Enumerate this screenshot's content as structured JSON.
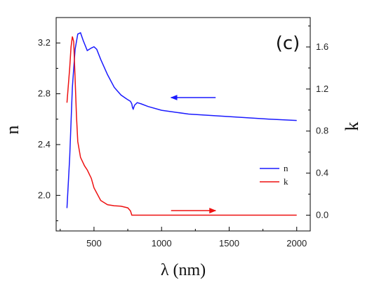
{
  "chart_data": {
    "type": "line",
    "panel_label": "(c)",
    "xlabel": "λ (nm)",
    "ylabel_left": "n",
    "ylabel_right": "k",
    "xlim": [
      220,
      2100
    ],
    "ylim_left": [
      1.72,
      3.4
    ],
    "ylim_right": [
      -0.15,
      1.88
    ],
    "x_ticks": [
      500,
      1000,
      1500,
      2000
    ],
    "x_tick_labels": [
      "500",
      "1000",
      "1500",
      "2000"
    ],
    "y_ticks_left": [
      2.0,
      2.4,
      2.8,
      3.2
    ],
    "y_tick_labels_left": [
      "2.0",
      "2.4",
      "2.8",
      "3.2"
    ],
    "y_ticks_right": [
      0.0,
      0.4,
      0.8,
      1.2,
      1.6
    ],
    "y_tick_labels_right": [
      "0.0",
      "0.4",
      "0.8",
      "1.2",
      "1.6"
    ],
    "legend_position": "center-right",
    "series": [
      {
        "name": "n",
        "axis": "left",
        "color": "#1a1aff",
        "x": [
          300,
          320,
          340,
          360,
          380,
          400,
          420,
          450,
          480,
          500,
          520,
          550,
          600,
          650,
          700,
          740,
          770,
          780,
          785,
          790,
          800,
          820,
          850,
          900,
          1000,
          1200,
          1500,
          1800,
          2000
        ],
        "y": [
          1.9,
          2.3,
          2.85,
          3.15,
          3.27,
          3.28,
          3.22,
          3.14,
          3.16,
          3.17,
          3.15,
          3.07,
          2.95,
          2.85,
          2.79,
          2.76,
          2.74,
          2.72,
          2.69,
          2.68,
          2.71,
          2.73,
          2.72,
          2.7,
          2.67,
          2.64,
          2.62,
          2.6,
          2.59
        ]
      },
      {
        "name": "k",
        "axis": "right",
        "color": "#ee1111",
        "x": [
          300,
          320,
          330,
          340,
          350,
          360,
          370,
          380,
          400,
          430,
          450,
          480,
          500,
          550,
          600,
          650,
          700,
          750,
          770,
          780,
          800,
          1000,
          1500,
          2000
        ],
        "y": [
          1.07,
          1.4,
          1.6,
          1.7,
          1.65,
          1.3,
          0.95,
          0.7,
          0.55,
          0.47,
          0.43,
          0.35,
          0.26,
          0.14,
          0.1,
          0.09,
          0.085,
          0.07,
          0.04,
          0.0,
          0.0,
          0.0,
          0.0,
          0.0
        ]
      }
    ],
    "annotations": [
      {
        "type": "arrow",
        "direction": "left",
        "color": "#1a1aff",
        "refers_to": "n",
        "from_x": 1400,
        "to_x": 1070,
        "y_left": 2.77
      },
      {
        "type": "arrow",
        "direction": "right",
        "color": "#ee1111",
        "refers_to": "k",
        "from_x": 1070,
        "to_x": 1400,
        "y_left": 1.88
      }
    ]
  }
}
